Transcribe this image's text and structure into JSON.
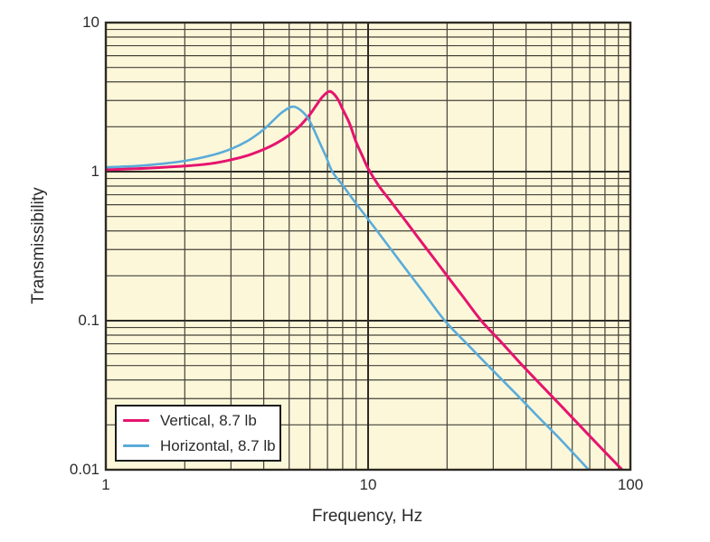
{
  "figure": {
    "background_color": "#ffffff",
    "text_color": "#2b2b2b"
  },
  "chart_data": {
    "type": "line",
    "title": "",
    "xlabel": "Frequency, Hz",
    "ylabel": "Transmissibility",
    "x_scale": "log",
    "y_scale": "log",
    "xlim": [
      1,
      100
    ],
    "ylim": [
      0.01,
      10
    ],
    "grid": "major-and-minor log grid, on",
    "legend_position": "lower-left inside plot",
    "plot_bg_color": "#fcf7d9",
    "grid_major_color": "#2e2a24",
    "grid_minor_color": "#46423a",
    "frame_color": "#2e2a24",
    "x_ticks": [
      {
        "value": 1,
        "label": "1"
      },
      {
        "value": 10,
        "label": "10"
      },
      {
        "value": 100,
        "label": "100"
      }
    ],
    "y_ticks": [
      {
        "value": 10,
        "label": "10"
      },
      {
        "value": 1,
        "label": "1"
      },
      {
        "value": 0.1,
        "label": "0.1"
      },
      {
        "value": 0.01,
        "label": "0.01"
      }
    ],
    "series": [
      {
        "name": "Vertical, 8.7 lb",
        "color": "#e6146e",
        "line_width": 3,
        "resonant_frequency_hz": 7.1,
        "peak_transmissibility": 3.45,
        "points": [
          [
            1,
            1.03
          ],
          [
            1.3,
            1.045
          ],
          [
            1.6,
            1.065
          ],
          [
            2,
            1.09
          ],
          [
            2.5,
            1.13
          ],
          [
            3,
            1.2
          ],
          [
            3.5,
            1.29
          ],
          [
            4,
            1.41
          ],
          [
            4.5,
            1.56
          ],
          [
            5,
            1.76
          ],
          [
            5.5,
            2.03
          ],
          [
            6,
            2.42
          ],
          [
            6.4,
            2.85
          ],
          [
            6.7,
            3.18
          ],
          [
            7.1,
            3.45
          ],
          [
            7.4,
            3.32
          ],
          [
            7.7,
            3.02
          ],
          [
            8,
            2.62
          ],
          [
            8.5,
            2.1
          ],
          [
            9,
            1.58
          ],
          [
            9.5,
            1.28
          ],
          [
            10,
            1.05
          ],
          [
            11,
            0.8
          ],
          [
            12,
            0.655
          ],
          [
            13,
            0.545
          ],
          [
            14,
            0.459
          ],
          [
            16,
            0.336
          ],
          [
            18,
            0.256
          ],
          [
            20,
            0.2
          ],
          [
            23,
            0.145
          ],
          [
            27,
            0.1
          ],
          [
            32,
            0.0725
          ],
          [
            38,
            0.052
          ],
          [
            45,
            0.038
          ],
          [
            55,
            0.0263
          ],
          [
            70,
            0.0168
          ],
          [
            94,
            0.0098
          ]
        ]
      },
      {
        "name": "Horizontal, 8.7 lb",
        "color": "#5aabda",
        "line_width": 2.6,
        "resonant_frequency_hz": 5.1,
        "peak_transmissibility": 2.72,
        "points": [
          [
            1,
            1.07
          ],
          [
            1.3,
            1.09
          ],
          [
            1.6,
            1.125
          ],
          [
            2,
            1.18
          ],
          [
            2.5,
            1.28
          ],
          [
            3,
            1.42
          ],
          [
            3.5,
            1.62
          ],
          [
            4,
            1.92
          ],
          [
            4.4,
            2.25
          ],
          [
            4.7,
            2.5
          ],
          [
            5.1,
            2.72
          ],
          [
            5.4,
            2.66
          ],
          [
            5.8,
            2.38
          ],
          [
            6.1,
            2.05
          ],
          [
            6.5,
            1.6
          ],
          [
            6.9,
            1.27
          ],
          [
            7.3,
            1.0
          ],
          [
            8,
            0.81
          ],
          [
            9,
            0.61
          ],
          [
            10,
            0.48
          ],
          [
            11,
            0.385
          ],
          [
            12,
            0.314
          ],
          [
            14,
            0.219
          ],
          [
            16,
            0.161
          ],
          [
            19.6,
            0.1
          ],
          [
            24,
            0.069
          ],
          [
            30,
            0.046
          ],
          [
            37,
            0.0317
          ],
          [
            45,
            0.0222
          ],
          [
            55,
            0.0155
          ],
          [
            70,
            0.0098
          ]
        ]
      }
    ]
  }
}
